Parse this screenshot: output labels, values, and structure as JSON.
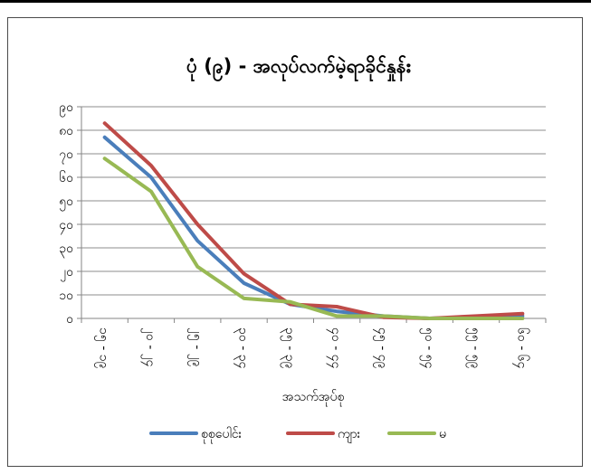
{
  "chart_data": {
    "type": "line",
    "title": "ပုံ (၉) - အလုပ်လက်မဲ့ရာခိုင်နှုန်း",
    "xlabel": "အသက်အုပ်စု",
    "ylabel": "",
    "categories": [
      "၁၅ - ၁၉",
      "၂၀ - ၂၄",
      "၂၅ - ၂၉",
      "၃၀ - ၃၄",
      "၃၅ - ၃၉",
      "၄၀ - ၄၄",
      "၄၅ - ၄၉",
      "၅၀ - ၅၄",
      "၅၅ - ၅၉",
      "၆၀ - ၆၄"
    ],
    "ylim": [
      0,
      90
    ],
    "yticks": [
      "၀",
      "၁၀",
      "၂၀",
      "၃၀",
      "၄၀",
      "၅၀",
      "၆၀",
      "၇၀",
      "၈၀",
      "၉၀"
    ],
    "grid": true,
    "legend": "bottom",
    "series": [
      {
        "name": "စုစုပေါင်း",
        "color": "#4a7ebb",
        "values": [
          77,
          60,
          33,
          15,
          6,
          3,
          1,
          0,
          0.5,
          1
        ]
      },
      {
        "name": "ကျား",
        "color": "#be4b48",
        "values": [
          83,
          65,
          40,
          19,
          6,
          5,
          0.5,
          0,
          1,
          2
        ]
      },
      {
        "name": "မ",
        "color": "#98b954",
        "values": [
          68,
          54,
          22,
          8.5,
          7,
          1,
          1,
          0,
          0,
          0
        ]
      }
    ]
  }
}
